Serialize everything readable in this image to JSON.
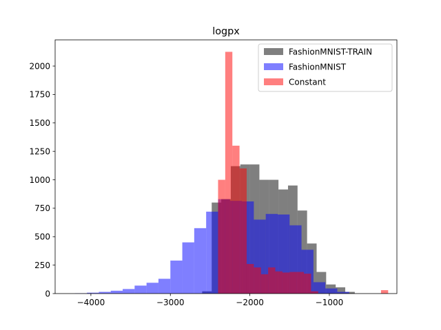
{
  "chart_data": {
    "type": "bar",
    "subtype": "overlaid-histogram",
    "title": "logpx",
    "xlabel": "",
    "ylabel": "",
    "xlim": [
      -4450,
      -150
    ],
    "ylim": [
      0,
      2230
    ],
    "x_ticks": [
      -4000,
      -3000,
      -2000,
      -1000
    ],
    "x_tick_labels": [
      "−4000",
      "−3000",
      "−2000",
      "−1000"
    ],
    "y_ticks": [
      0,
      250,
      500,
      750,
      1000,
      1250,
      1500,
      1750,
      2000
    ],
    "y_tick_labels": [
      "0",
      "250",
      "500",
      "750",
      "1000",
      "1250",
      "1500",
      "1750",
      "2000"
    ],
    "grid": false,
    "legend_position": "upper right",
    "series": [
      {
        "name": "FashionMNIST-TRAIN",
        "color": "#000000",
        "alpha": 0.5,
        "bins": [
          {
            "x0": -2600,
            "x1": -2480,
            "count": 20
          },
          {
            "x0": -2480,
            "x1": -2360,
            "count": 800
          },
          {
            "x0": -2360,
            "x1": -2240,
            "count": 830
          },
          {
            "x0": -2240,
            "x1": -2120,
            "count": 1120
          },
          {
            "x0": -2120,
            "x1": -2000,
            "count": 1135
          },
          {
            "x0": -2000,
            "x1": -1880,
            "count": 1135
          },
          {
            "x0": -1880,
            "x1": -1760,
            "count": 1000
          },
          {
            "x0": -1760,
            "x1": -1640,
            "count": 1000
          },
          {
            "x0": -1640,
            "x1": -1520,
            "count": 915
          },
          {
            "x0": -1520,
            "x1": -1400,
            "count": 950
          },
          {
            "x0": -1400,
            "x1": -1280,
            "count": 730
          },
          {
            "x0": -1280,
            "x1": -1160,
            "count": 440
          },
          {
            "x0": -1160,
            "x1": -1040,
            "count": 190
          },
          {
            "x0": -1040,
            "x1": -920,
            "count": 80
          },
          {
            "x0": -920,
            "x1": -800,
            "count": 55
          },
          {
            "x0": -800,
            "x1": -680,
            "count": 15
          }
        ]
      },
      {
        "name": "FashionMNIST",
        "color": "#0000ff",
        "alpha": 0.5,
        "bins": [
          {
            "x0": -4200,
            "x1": -4050,
            "count": 3
          },
          {
            "x0": -4050,
            "x1": -3900,
            "count": 8
          },
          {
            "x0": -3900,
            "x1": -3750,
            "count": 15
          },
          {
            "x0": -3750,
            "x1": -3600,
            "count": 25
          },
          {
            "x0": -3600,
            "x1": -3450,
            "count": 40
          },
          {
            "x0": -3450,
            "x1": -3300,
            "count": 70
          },
          {
            "x0": -3300,
            "x1": -3150,
            "count": 95
          },
          {
            "x0": -3150,
            "x1": -3000,
            "count": 130
          },
          {
            "x0": -3000,
            "x1": -2850,
            "count": 290
          },
          {
            "x0": -2850,
            "x1": -2700,
            "count": 450
          },
          {
            "x0": -2700,
            "x1": -2550,
            "count": 575
          },
          {
            "x0": -2550,
            "x1": -2400,
            "count": 720
          },
          {
            "x0": -2400,
            "x1": -2250,
            "count": 830
          },
          {
            "x0": -2250,
            "x1": -2100,
            "count": 815
          },
          {
            "x0": -2100,
            "x1": -1950,
            "count": 810
          },
          {
            "x0": -1950,
            "x1": -1800,
            "count": 650
          },
          {
            "x0": -1800,
            "x1": -1650,
            "count": 700
          },
          {
            "x0": -1650,
            "x1": -1500,
            "count": 695
          },
          {
            "x0": -1500,
            "x1": -1350,
            "count": 600
          },
          {
            "x0": -1350,
            "x1": -1200,
            "count": 385
          },
          {
            "x0": -1200,
            "x1": -1050,
            "count": 100
          },
          {
            "x0": -1050,
            "x1": -900,
            "count": 45
          },
          {
            "x0": -900,
            "x1": -750,
            "count": 15
          }
        ]
      },
      {
        "name": "Constant",
        "color": "#ff0000",
        "alpha": 0.5,
        "bins": [
          {
            "x0": -2400,
            "x1": -2310,
            "count": 1000
          },
          {
            "x0": -2310,
            "x1": -2220,
            "count": 2125
          },
          {
            "x0": -2220,
            "x1": -2130,
            "count": 1300
          },
          {
            "x0": -2130,
            "x1": -2040,
            "count": 1100
          },
          {
            "x0": -2040,
            "x1": -1950,
            "count": 260
          },
          {
            "x0": -1950,
            "x1": -1860,
            "count": 230
          },
          {
            "x0": -1860,
            "x1": -1770,
            "count": 170
          },
          {
            "x0": -1770,
            "x1": -1680,
            "count": 230
          },
          {
            "x0": -1680,
            "x1": -1590,
            "count": 195
          },
          {
            "x0": -1590,
            "x1": -1500,
            "count": 185
          },
          {
            "x0": -1500,
            "x1": -1410,
            "count": 190
          },
          {
            "x0": -1410,
            "x1": -1320,
            "count": 190
          },
          {
            "x0": -1320,
            "x1": -1230,
            "count": 175
          },
          {
            "x0": -1230,
            "x1": -1140,
            "count": 20
          },
          {
            "x0": -350,
            "x1": -260,
            "count": 30
          }
        ]
      }
    ]
  }
}
